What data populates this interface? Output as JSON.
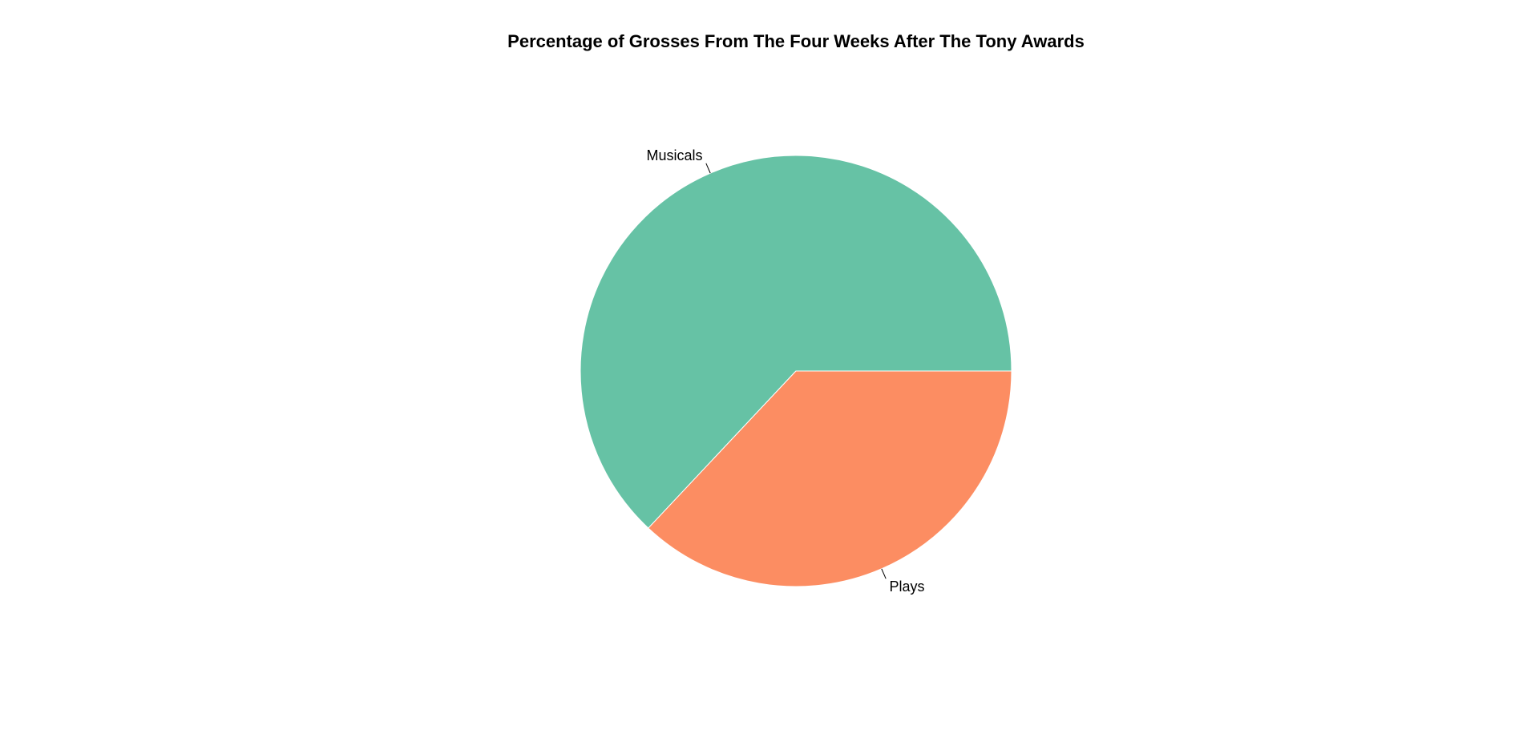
{
  "chart_data": {
    "type": "pie",
    "title": "Percentage of Grosses From The Four Weeks After The Tony Awards",
    "categories": [
      "Musicals",
      "Plays"
    ],
    "values": [
      63,
      37
    ],
    "colors": [
      "#66c2a5",
      "#fc8d62"
    ],
    "start": "3 o'clock",
    "direction": "counterclockwise",
    "legend": "none",
    "labels_position": "outside"
  }
}
